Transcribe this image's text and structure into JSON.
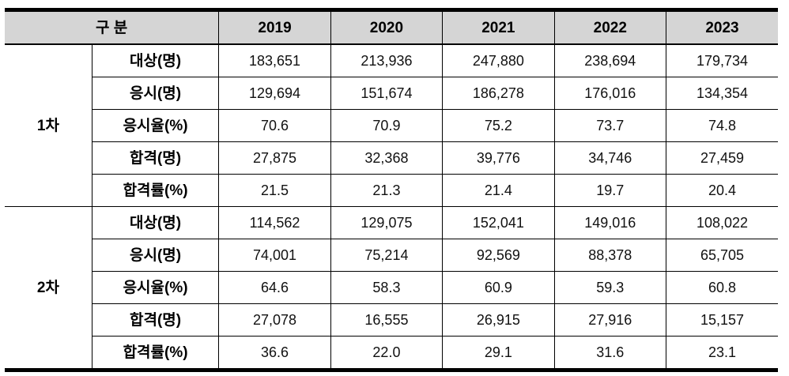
{
  "chart_data": {
    "type": "table",
    "header": {
      "group_col_label": "구 분",
      "years": [
        "2019",
        "2020",
        "2021",
        "2022",
        "2023"
      ]
    },
    "groups": [
      {
        "name": "1차",
        "rows": [
          {
            "label": "대상(명)",
            "values": [
              "183,651",
              "213,936",
              "247,880",
              "238,694",
              "179,734"
            ]
          },
          {
            "label": "응시(명)",
            "values": [
              "129,694",
              "151,674",
              "186,278",
              "176,016",
              "134,354"
            ]
          },
          {
            "label": "응시율(%)",
            "values": [
              "70.6",
              "70.9",
              "75.2",
              "73.7",
              "74.8"
            ]
          },
          {
            "label": "합격(명)",
            "values": [
              "27,875",
              "32,368",
              "39,776",
              "34,746",
              "27,459"
            ]
          },
          {
            "label": "합격률(%)",
            "values": [
              "21.5",
              "21.3",
              "21.4",
              "19.7",
              "20.4"
            ]
          }
        ]
      },
      {
        "name": "2차",
        "rows": [
          {
            "label": "대상(명)",
            "values": [
              "114,562",
              "129,075",
              "152,041",
              "149,016",
              "108,022"
            ]
          },
          {
            "label": "응시(명)",
            "values": [
              "74,001",
              "75,214",
              "92,569",
              "88,378",
              "65,705"
            ]
          },
          {
            "label": "응시율(%)",
            "values": [
              "64.6",
              "58.3",
              "60.9",
              "59.3",
              "60.8"
            ]
          },
          {
            "label": "합격(명)",
            "values": [
              "27,078",
              "16,555",
              "26,915",
              "27,916",
              "15,157"
            ]
          },
          {
            "label": "합격률(%)",
            "values": [
              "36.6",
              "22.0",
              "29.1",
              "31.6",
              "23.1"
            ]
          }
        ]
      }
    ],
    "layout": {
      "grid": "on",
      "outer_borders": "thick top and bottom, open left and right sides"
    }
  },
  "colors": {
    "header_bg": "#d5d5d5",
    "border": "#000000",
    "text": "#000000",
    "background": "#ffffff"
  }
}
